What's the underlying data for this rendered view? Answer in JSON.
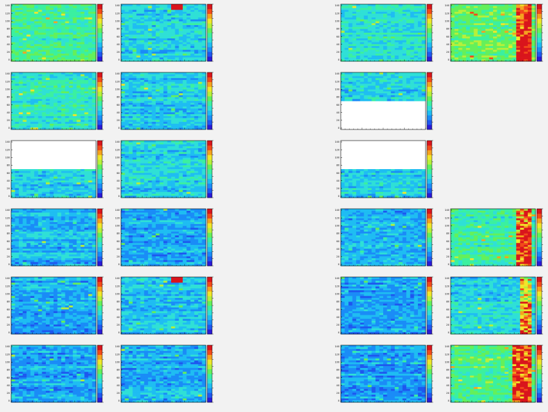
{
  "page": {
    "background": "#f2f2f2",
    "rows": 6,
    "cols": 5
  },
  "chart_data": {
    "type": "heatmap",
    "description_note": "",
    "y_ticks": [
      "140",
      "120",
      "100",
      "80",
      "60",
      "40",
      "20",
      "0"
    ],
    "palette": [
      "#2a1ad6",
      "#1e57ef",
      "#1a8cf7",
      "#1fbdf2",
      "#2fe0d6",
      "#3bf0a0",
      "#64f05a",
      "#b7f03a",
      "#f1e62a",
      "#f5a21f",
      "#f24a1a",
      "#d9151c"
    ],
    "panels": [
      {
        "row": 0,
        "col": 0,
        "present": true,
        "level": 0.46,
        "hot_cols": 0,
        "empty_top": 0,
        "hot_spot": false
      },
      {
        "row": 0,
        "col": 1,
        "present": true,
        "level": 0.33,
        "hot_cols": 0,
        "empty_top": 0,
        "hot_spot": true
      },
      {
        "row": 0,
        "col": 2,
        "present": false
      },
      {
        "row": 0,
        "col": 3,
        "present": true,
        "level": 0.38,
        "hot_cols": 0,
        "empty_top": 0,
        "hot_spot": false
      },
      {
        "row": 0,
        "col": 4,
        "present": true,
        "level": 0.52,
        "hot_cols": 3,
        "empty_top": 0,
        "hot_spot": false
      },
      {
        "row": 1,
        "col": 0,
        "present": true,
        "level": 0.4,
        "hot_cols": 0,
        "empty_top": 0,
        "hot_spot": false
      },
      {
        "row": 1,
        "col": 1,
        "present": true,
        "level": 0.33,
        "hot_cols": 0,
        "empty_top": 0,
        "hot_spot": false
      },
      {
        "row": 1,
        "col": 2,
        "present": false
      },
      {
        "row": 1,
        "col": 3,
        "present": true,
        "level": 0.33,
        "hot_cols": 0,
        "empty_top": 0,
        "empty_bottom": 0.5,
        "hot_spot": false
      },
      {
        "row": 1,
        "col": 4,
        "present": false
      },
      {
        "row": 2,
        "col": 0,
        "present": true,
        "level": 0.34,
        "hot_cols": 0,
        "empty_top": 0.5,
        "hot_spot": false
      },
      {
        "row": 2,
        "col": 1,
        "present": true,
        "level": 0.34,
        "hot_cols": 0,
        "empty_top": 0,
        "hot_spot": false
      },
      {
        "row": 2,
        "col": 2,
        "present": false
      },
      {
        "row": 2,
        "col": 3,
        "present": true,
        "level": 0.33,
        "hot_cols": 0,
        "empty_top": 0.5,
        "hot_spot": false
      },
      {
        "row": 2,
        "col": 4,
        "present": false
      },
      {
        "row": 3,
        "col": 0,
        "present": true,
        "level": 0.28,
        "hot_cols": 0,
        "empty_top": 0,
        "hot_spot": false
      },
      {
        "row": 3,
        "col": 1,
        "present": true,
        "level": 0.26,
        "hot_cols": 0,
        "empty_top": 0,
        "hot_spot": false
      },
      {
        "row": 3,
        "col": 2,
        "present": false
      },
      {
        "row": 3,
        "col": 3,
        "present": true,
        "level": 0.28,
        "hot_cols": 0,
        "empty_top": 0,
        "hot_spot": false
      },
      {
        "row": 3,
        "col": 4,
        "present": true,
        "level": 0.45,
        "hot_cols": 3,
        "empty_top": 0,
        "hot_spot": false
      },
      {
        "row": 4,
        "col": 0,
        "present": true,
        "level": 0.26,
        "hot_cols": 0,
        "empty_top": 0,
        "hot_spot": false
      },
      {
        "row": 4,
        "col": 1,
        "present": true,
        "level": 0.3,
        "hot_cols": 0,
        "empty_top": 0,
        "hot_spot": true
      },
      {
        "row": 4,
        "col": 2,
        "present": false
      },
      {
        "row": 4,
        "col": 3,
        "present": true,
        "level": 0.24,
        "hot_cols": 0,
        "empty_top": 0,
        "hot_spot": false
      },
      {
        "row": 4,
        "col": 4,
        "present": true,
        "level": 0.35,
        "hot_cols": 2,
        "empty_top": 0,
        "hot_spot": false
      },
      {
        "row": 5,
        "col": 0,
        "present": true,
        "level": 0.25,
        "hot_cols": 0,
        "empty_top": 0,
        "hot_spot": false
      },
      {
        "row": 5,
        "col": 1,
        "present": true,
        "level": 0.27,
        "hot_cols": 0,
        "empty_top": 0,
        "hot_spot": false
      },
      {
        "row": 5,
        "col": 2,
        "present": false
      },
      {
        "row": 5,
        "col": 3,
        "present": true,
        "level": 0.24,
        "hot_cols": 0,
        "empty_top": 0,
        "hot_spot": false
      },
      {
        "row": 5,
        "col": 4,
        "present": true,
        "level": 0.48,
        "hot_cols": 4,
        "empty_top": 0,
        "hot_spot": false
      }
    ]
  }
}
